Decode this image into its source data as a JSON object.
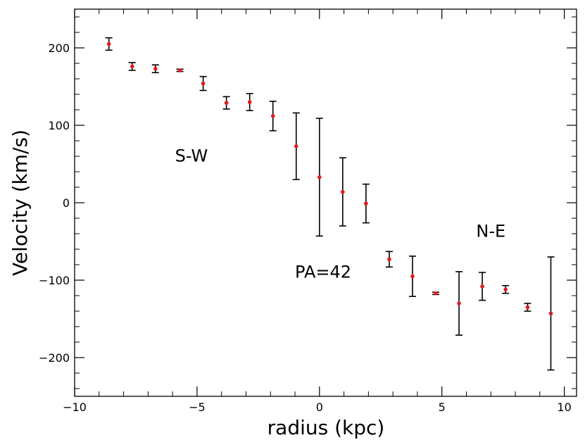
{
  "chart_data": {
    "type": "scatter",
    "title": "",
    "xlabel": "radius (kpc)",
    "ylabel": "Velocity (km/s)",
    "xlim": [
      -10,
      10.5
    ],
    "ylim": [
      -250,
      250
    ],
    "x_major_ticks": [
      -10,
      -5,
      0,
      5,
      10
    ],
    "x_tick_labels": [
      "−10",
      "−5",
      "0",
      "5",
      "10"
    ],
    "y_major_ticks": [
      -200,
      -100,
      0,
      100,
      200
    ],
    "y_tick_labels": [
      "−200",
      "−100",
      "0",
      "100",
      "200"
    ],
    "grid": false,
    "legend": "none",
    "colors": {
      "point": "#e41a1c",
      "errorbar": "#000000"
    },
    "series": [
      {
        "x": [
          -8.6,
          -7.65,
          -6.7,
          -5.7,
          -4.75,
          -3.8,
          -2.85,
          -1.9,
          -0.95,
          0.0,
          0.95,
          1.9,
          2.85,
          3.8,
          4.75,
          5.7,
          6.65,
          7.6,
          8.5,
          9.45
        ],
        "y": [
          205,
          176,
          173,
          171,
          154,
          129,
          130,
          112,
          73,
          33,
          14,
          -1,
          -73,
          -95,
          -117,
          -130,
          -108,
          -112,
          -135,
          -143
        ],
        "err": [
          8,
          5,
          5,
          1.5,
          9,
          8,
          11,
          19,
          43,
          76,
          44,
          25,
          10,
          26,
          1.5,
          41,
          18,
          5,
          5,
          73
        ]
      }
    ],
    "annotations": [
      {
        "text": "S-W",
        "x": -5.9,
        "y": 53
      },
      {
        "text": "PA=42",
        "x": -1.0,
        "y": -97
      },
      {
        "text": "N-E",
        "x": 6.4,
        "y": -44
      }
    ]
  }
}
